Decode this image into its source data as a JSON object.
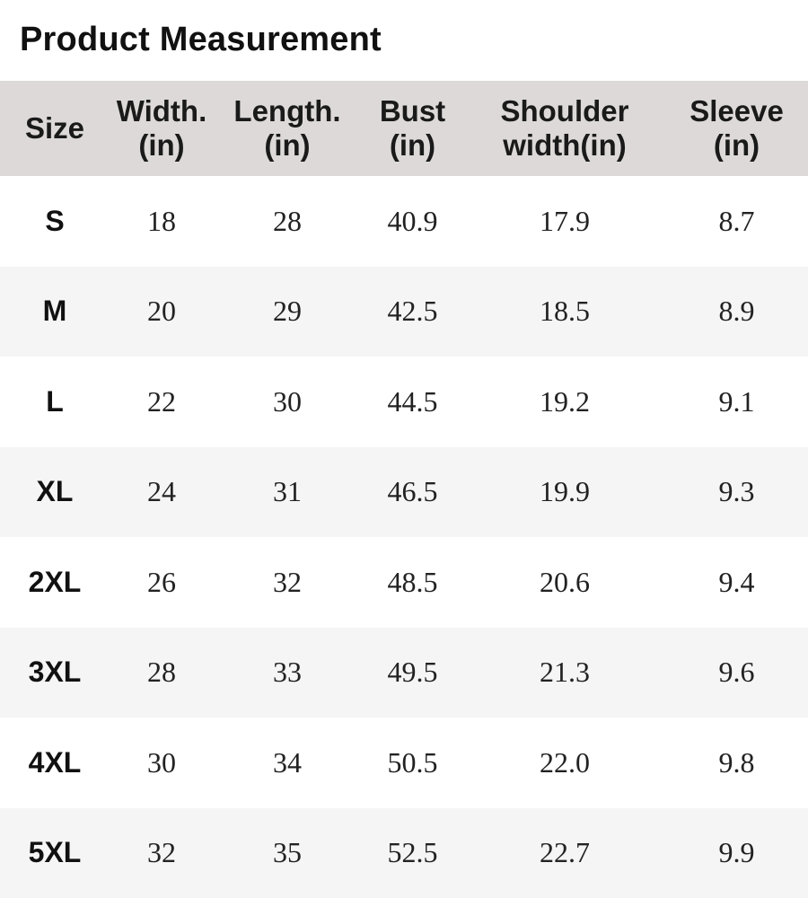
{
  "title": "Product Measurement",
  "headers": {
    "size": [
      "Size"
    ],
    "width": [
      "Width.",
      "(in)"
    ],
    "length": [
      "Length.",
      "(in)"
    ],
    "bust": [
      "Bust",
      "(in)"
    ],
    "shoulder": [
      "Shoulder",
      "width(in)"
    ],
    "sleeve": [
      "Sleeve",
      "(in)"
    ]
  },
  "rows": [
    {
      "size": "S",
      "width": "18",
      "length": "28",
      "bust": "40.9",
      "shoulder": "17.9",
      "sleeve": "8.7"
    },
    {
      "size": "M",
      "width": "20",
      "length": "29",
      "bust": "42.5",
      "shoulder": "18.5",
      "sleeve": "8.9"
    },
    {
      "size": "L",
      "width": "22",
      "length": "30",
      "bust": "44.5",
      "shoulder": "19.2",
      "sleeve": "9.1"
    },
    {
      "size": "XL",
      "width": "24",
      "length": "31",
      "bust": "46.5",
      "shoulder": "19.9",
      "sleeve": "9.3"
    },
    {
      "size": "2XL",
      "width": "26",
      "length": "32",
      "bust": "48.5",
      "shoulder": "20.6",
      "sleeve": "9.4"
    },
    {
      "size": "3XL",
      "width": "28",
      "length": "33",
      "bust": "49.5",
      "shoulder": "21.3",
      "sleeve": "9.6"
    },
    {
      "size": "4XL",
      "width": "30",
      "length": "34",
      "bust": "50.5",
      "shoulder": "22.0",
      "sleeve": "9.8"
    },
    {
      "size": "5XL",
      "width": "32",
      "length": "35",
      "bust": "52.5",
      "shoulder": "22.7",
      "sleeve": "9.9"
    }
  ],
  "colors": {
    "header_bg": "#dcd9d8",
    "row_alt_bg": "#f5f5f5",
    "row_bg": "#ffffff",
    "text": "#111111"
  }
}
